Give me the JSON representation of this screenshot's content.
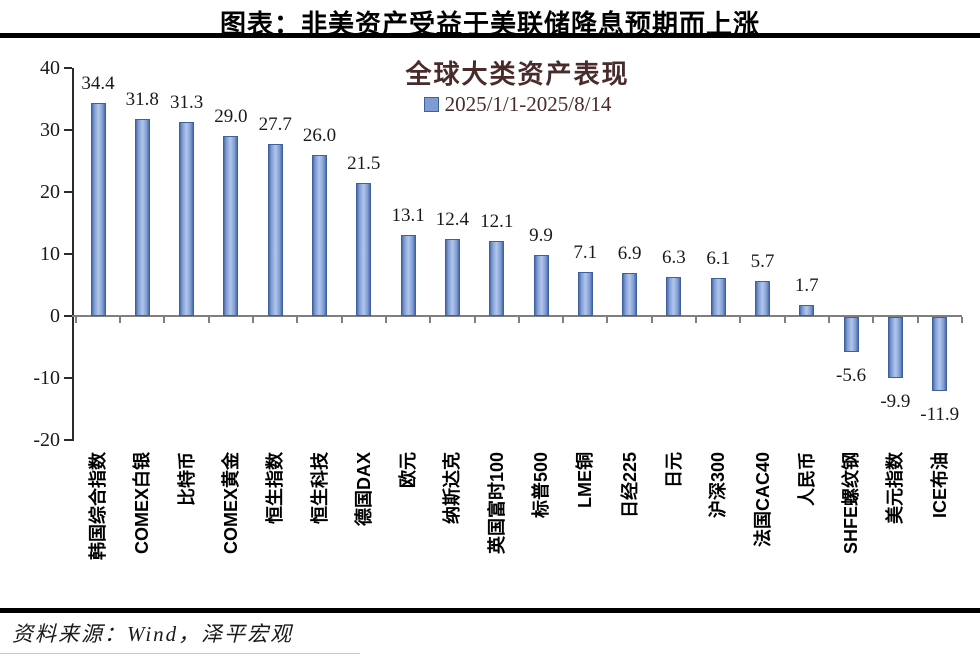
{
  "page": {
    "title": "图表：非美资产受益于美联储降息预期而上涨",
    "source": "资料来源：Wind，泽平宏观"
  },
  "chart_data": {
    "type": "bar",
    "title": "全球大类资产表现",
    "legend": "2025/1/1-2025/8/14",
    "legend_position": "top",
    "grid": false,
    "categories": [
      "韩国综合指数",
      "COMEX白银",
      "比特币",
      "COMEX黄金",
      "恒生指数",
      "恒生科技",
      "德国DAX",
      "欧元",
      "纳斯达克",
      "英国富时100",
      "标普500",
      "LME铜",
      "日经225",
      "日元",
      "沪深300",
      "法国CAC40",
      "人民币",
      "SHFE螺纹钢",
      "美元指数",
      "ICE布油"
    ],
    "values": [
      34.4,
      31.8,
      31.3,
      29.0,
      27.7,
      26.0,
      21.5,
      13.1,
      12.4,
      12.1,
      9.9,
      7.1,
      6.9,
      6.3,
      6.1,
      5.7,
      1.7,
      -5.6,
      -9.9,
      -11.9
    ],
    "value_labels": [
      "34.4",
      "31.8",
      "31.3",
      "29.0",
      "27.7",
      "26.0",
      "21.5",
      "13.1",
      "12.4",
      "12.1",
      "9.9",
      "7.1",
      "6.9",
      "6.3",
      "6.1",
      "5.7",
      "1.7",
      "-5.6",
      "-9.9",
      "-11.9"
    ],
    "ylim": [
      -20,
      40
    ],
    "yticks": [
      40,
      30,
      20,
      10,
      0,
      -10,
      -20
    ],
    "bar_fill": "#7e9cd4",
    "bar_border": "#3f5f9e",
    "title_color": "#4a2b2b"
  }
}
